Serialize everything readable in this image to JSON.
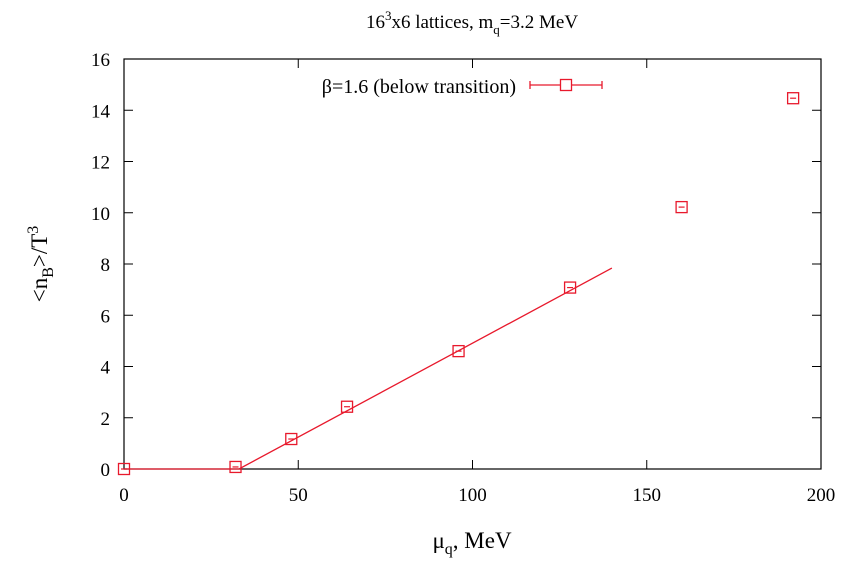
{
  "chart_data": {
    "type": "scatter",
    "title": {
      "main": "16",
      "sup": "3",
      "mid": "x6 lattices, m",
      "sub": "q",
      "tail": "=3.2 MeV"
    },
    "xlabel": {
      "main": "μ",
      "sub": "q",
      "tail": ", MeV"
    },
    "ylabel": {
      "pre": "<n",
      "sub": "B",
      "mid": ">/T",
      "sup": "3"
    },
    "xlim": [
      0,
      200
    ],
    "ylim": [
      0,
      16
    ],
    "xticks": [
      0,
      50,
      100,
      150,
      200
    ],
    "yticks": [
      0,
      2,
      4,
      6,
      8,
      10,
      12,
      14,
      16
    ],
    "grid": false,
    "legend_position": "top-right",
    "series": [
      {
        "name": "β=1.6 (below transition)",
        "color": "#e8192c",
        "marker": "square",
        "points": [
          {
            "x": 0,
            "y": 0.0
          },
          {
            "x": 32,
            "y": 0.08
          },
          {
            "x": 48,
            "y": 1.17
          },
          {
            "x": 64,
            "y": 2.43
          },
          {
            "x": 96,
            "y": 4.6
          },
          {
            "x": 128,
            "y": 7.08
          },
          {
            "x": 160,
            "y": 10.22
          },
          {
            "x": 192,
            "y": 14.47
          }
        ]
      }
    ],
    "fit_line": {
      "color": "#e8192c",
      "points": [
        {
          "x": 0,
          "y": 0.0
        },
        {
          "x": 33,
          "y": 0.0
        },
        {
          "x": 140,
          "y": 7.84
        }
      ]
    }
  }
}
